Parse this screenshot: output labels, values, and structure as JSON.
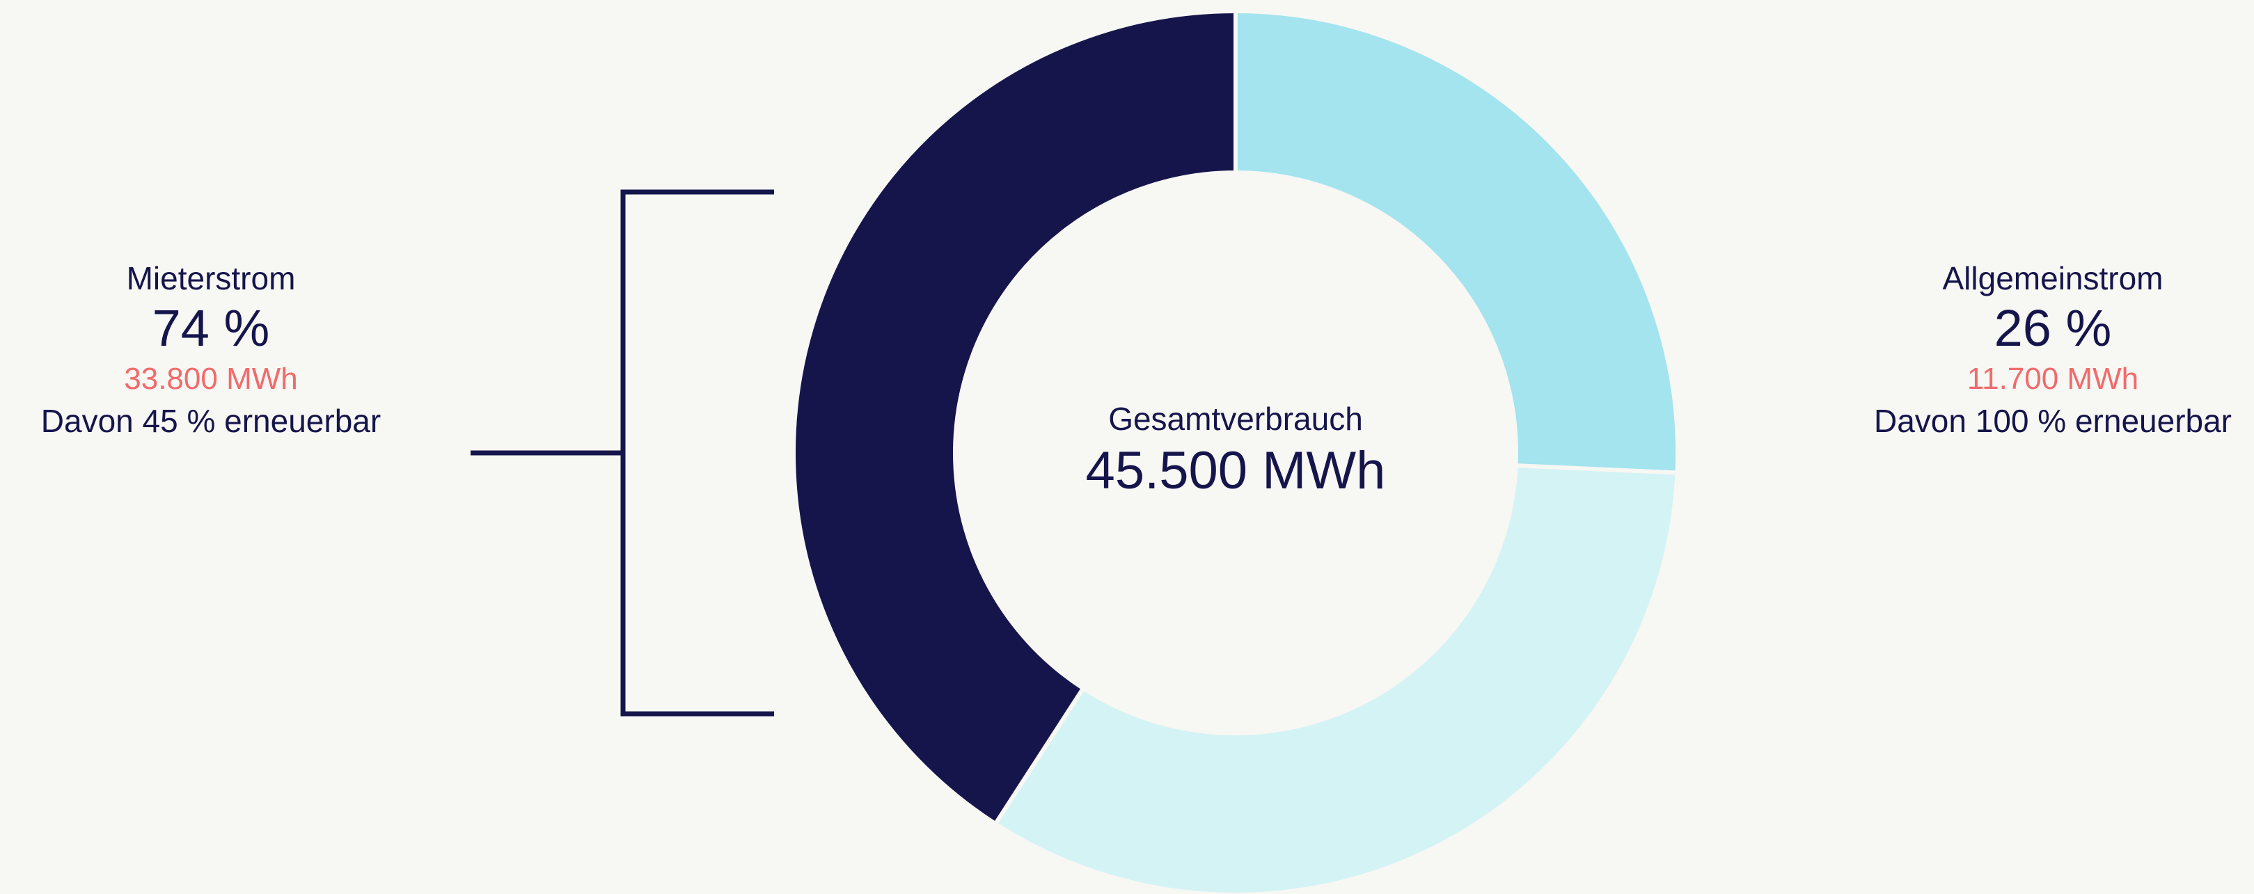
{
  "colors": {
    "background": "#f7f7f4",
    "navy": "#16154b",
    "accent_red": "#f06b6b",
    "segment_dark": "#16154b",
    "segment_cyan": "#a3e4ee",
    "segment_pale": "#d4f3f5"
  },
  "left": {
    "name": "Mieterstrom",
    "percent": "74 %",
    "mwh": "33.800 MWh",
    "renewable": "Davon 45 % erneuerbar"
  },
  "right": {
    "name": "Allgemeinstrom",
    "percent": "26 %",
    "mwh": "11.700 MWh",
    "renewable": "Davon 100 % erneuerbar"
  },
  "center": {
    "label": "Gesamtverbrauch",
    "value": "45.500 MWh"
  },
  "chart_data": {
    "type": "pie",
    "donut": true,
    "total": 45500,
    "unit": "MWh",
    "slices": [
      {
        "name": "Allgemeinstrom",
        "value": 11700,
        "percent": 26,
        "renewable_percent": 100,
        "color": "#a3e4ee"
      },
      {
        "name": "Mieterstrom (erneuerbar)",
        "value": 15210,
        "percent": 33.4,
        "color": "#d4f3f5"
      },
      {
        "name": "Mieterstrom (nicht erneuerbar)",
        "value": 18590,
        "percent": 40.6,
        "color": "#16154b"
      }
    ],
    "group": {
      "name": "Mieterstrom",
      "value": 33800,
      "percent": 74,
      "renewable_percent": 45
    },
    "start_angle_deg": 0,
    "direction": "clockwise"
  }
}
